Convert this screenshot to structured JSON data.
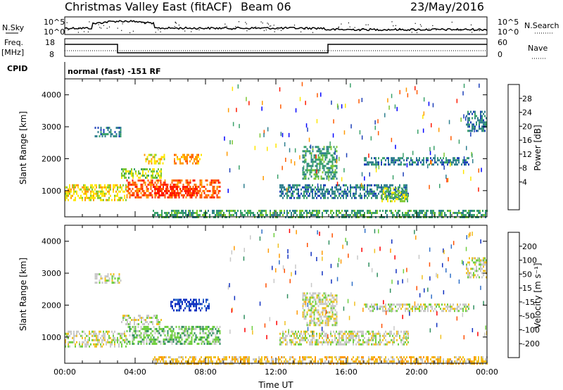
{
  "header": {
    "title": "Christmas Valley East (fitACF)",
    "beam": "Beam 06",
    "date": "23/May/2016"
  },
  "top_panels": {
    "nsky_label": "N.Sky",
    "nsky_ticks": [
      "10^5",
      "10^0"
    ],
    "nsearch_label": "N.Search",
    "nsearch_ticks": [
      "10^5",
      "10^0"
    ],
    "freq_label": "Freq.",
    "freq_unit": "[MHz]",
    "freq_ticks": [
      "18",
      "8"
    ],
    "nave_label": "Nave",
    "nave_ticks": [
      "60",
      "0"
    ],
    "cpid_label": "CPID",
    "cpid_text": "normal (fast) -151 RF"
  },
  "chart_data": [
    {
      "type": "heatmap",
      "name": "power",
      "ylabel": "Slant Range [km]",
      "yticks": [
        1000,
        2000,
        3000,
        4000
      ],
      "ylim": [
        180,
        4500
      ],
      "xlim": [
        0,
        24
      ],
      "colorbar_label": "Power [dB]",
      "colorbar_ticks": [
        "28",
        "24",
        "20",
        "16",
        "12",
        "8",
        "4"
      ],
      "colors": [
        "#0000ff",
        "#1c3fb8",
        "#2f7f8f",
        "#3aa16a",
        "#7ec832",
        "#ffe600",
        "#ff9a00",
        "#ff5a00",
        "#ff1a00"
      ],
      "regions": [
        {
          "t0": 0.0,
          "t1": 3.5,
          "r0": 700,
          "r1": 1200,
          "level": 5
        },
        {
          "t0": 3.5,
          "t1": 8.8,
          "r0": 780,
          "r1": 1350,
          "level": 7
        },
        {
          "t0": 5.0,
          "t1": 7.5,
          "r0": 820,
          "r1": 1150,
          "level": 8
        },
        {
          "t0": 3.2,
          "t1": 5.5,
          "r0": 1400,
          "r1": 1700,
          "level": 4
        },
        {
          "t0": 4.5,
          "t1": 5.7,
          "r0": 1850,
          "r1": 2150,
          "level": 5
        },
        {
          "t0": 6.2,
          "t1": 7.8,
          "r0": 1850,
          "r1": 2150,
          "level": 6
        },
        {
          "t0": 1.7,
          "t1": 3.2,
          "r0": 2700,
          "r1": 3000,
          "level": 2
        },
        {
          "t0": 12.2,
          "t1": 19.5,
          "r0": 800,
          "r1": 1200,
          "level": 2
        },
        {
          "t0": 13.5,
          "t1": 15.5,
          "r0": 1400,
          "r1": 2400,
          "level": 3
        },
        {
          "t0": 18.0,
          "t1": 19.5,
          "r0": 700,
          "r1": 1100,
          "level": 4
        },
        {
          "t0": 17.0,
          "t1": 23.0,
          "r0": 1850,
          "r1": 2050,
          "level": 2
        },
        {
          "t0": 22.8,
          "t1": 24.0,
          "r0": 2900,
          "r1": 3500,
          "level": 2
        },
        {
          "t0": 5.0,
          "t1": 24.0,
          "r0": 200,
          "r1": 400,
          "level": 3
        }
      ]
    },
    {
      "type": "heatmap",
      "name": "velocity",
      "ylabel": "Slant Range [km]",
      "yticks": [
        1000,
        2000,
        3000,
        4000
      ],
      "ylim": [
        180,
        4500
      ],
      "xlabel": "Time UT",
      "xticks": [
        "00:00",
        "04:00",
        "08:00",
        "12:00",
        "16:00",
        "20:00",
        "00:00"
      ],
      "xlim": [
        0,
        24
      ],
      "colorbar_label": "Velocity [m s⁻¹]",
      "colorbar_ticks": [
        "200",
        "100",
        "50",
        "15",
        "-15",
        "-50",
        "-100",
        "-200"
      ],
      "colors": [
        "#1030c0",
        "#2f6fc8",
        "#2f8f5f",
        "#6fcf3f",
        "#c8c8c8",
        "#f0c020",
        "#ff9a00",
        "#ff5000",
        "#ff0000"
      ],
      "regions": [
        {
          "t0": 0.0,
          "t1": 3.5,
          "r0": 700,
          "r1": 1200,
          "level": 4
        },
        {
          "t0": 3.5,
          "t1": 8.8,
          "r0": 780,
          "r1": 1350,
          "level": 3
        },
        {
          "t0": 3.2,
          "t1": 5.5,
          "r0": 1400,
          "r1": 1700,
          "level": 4
        },
        {
          "t0": 6.0,
          "t1": 8.2,
          "r0": 1850,
          "r1": 2200,
          "level": 0
        },
        {
          "t0": 1.7,
          "t1": 3.2,
          "r0": 2700,
          "r1": 3000,
          "level": 4
        },
        {
          "t0": 12.2,
          "t1": 19.5,
          "r0": 800,
          "r1": 1200,
          "level": 4
        },
        {
          "t0": 13.5,
          "t1": 15.5,
          "r0": 1400,
          "r1": 2400,
          "level": 4
        },
        {
          "t0": 17.0,
          "t1": 23.0,
          "r0": 1850,
          "r1": 2050,
          "level": 4
        },
        {
          "t0": 22.8,
          "t1": 24.0,
          "r0": 2900,
          "r1": 3500,
          "level": 4
        },
        {
          "t0": 5.0,
          "t1": 24.0,
          "r0": 200,
          "r1": 400,
          "level": 5
        }
      ]
    }
  ]
}
